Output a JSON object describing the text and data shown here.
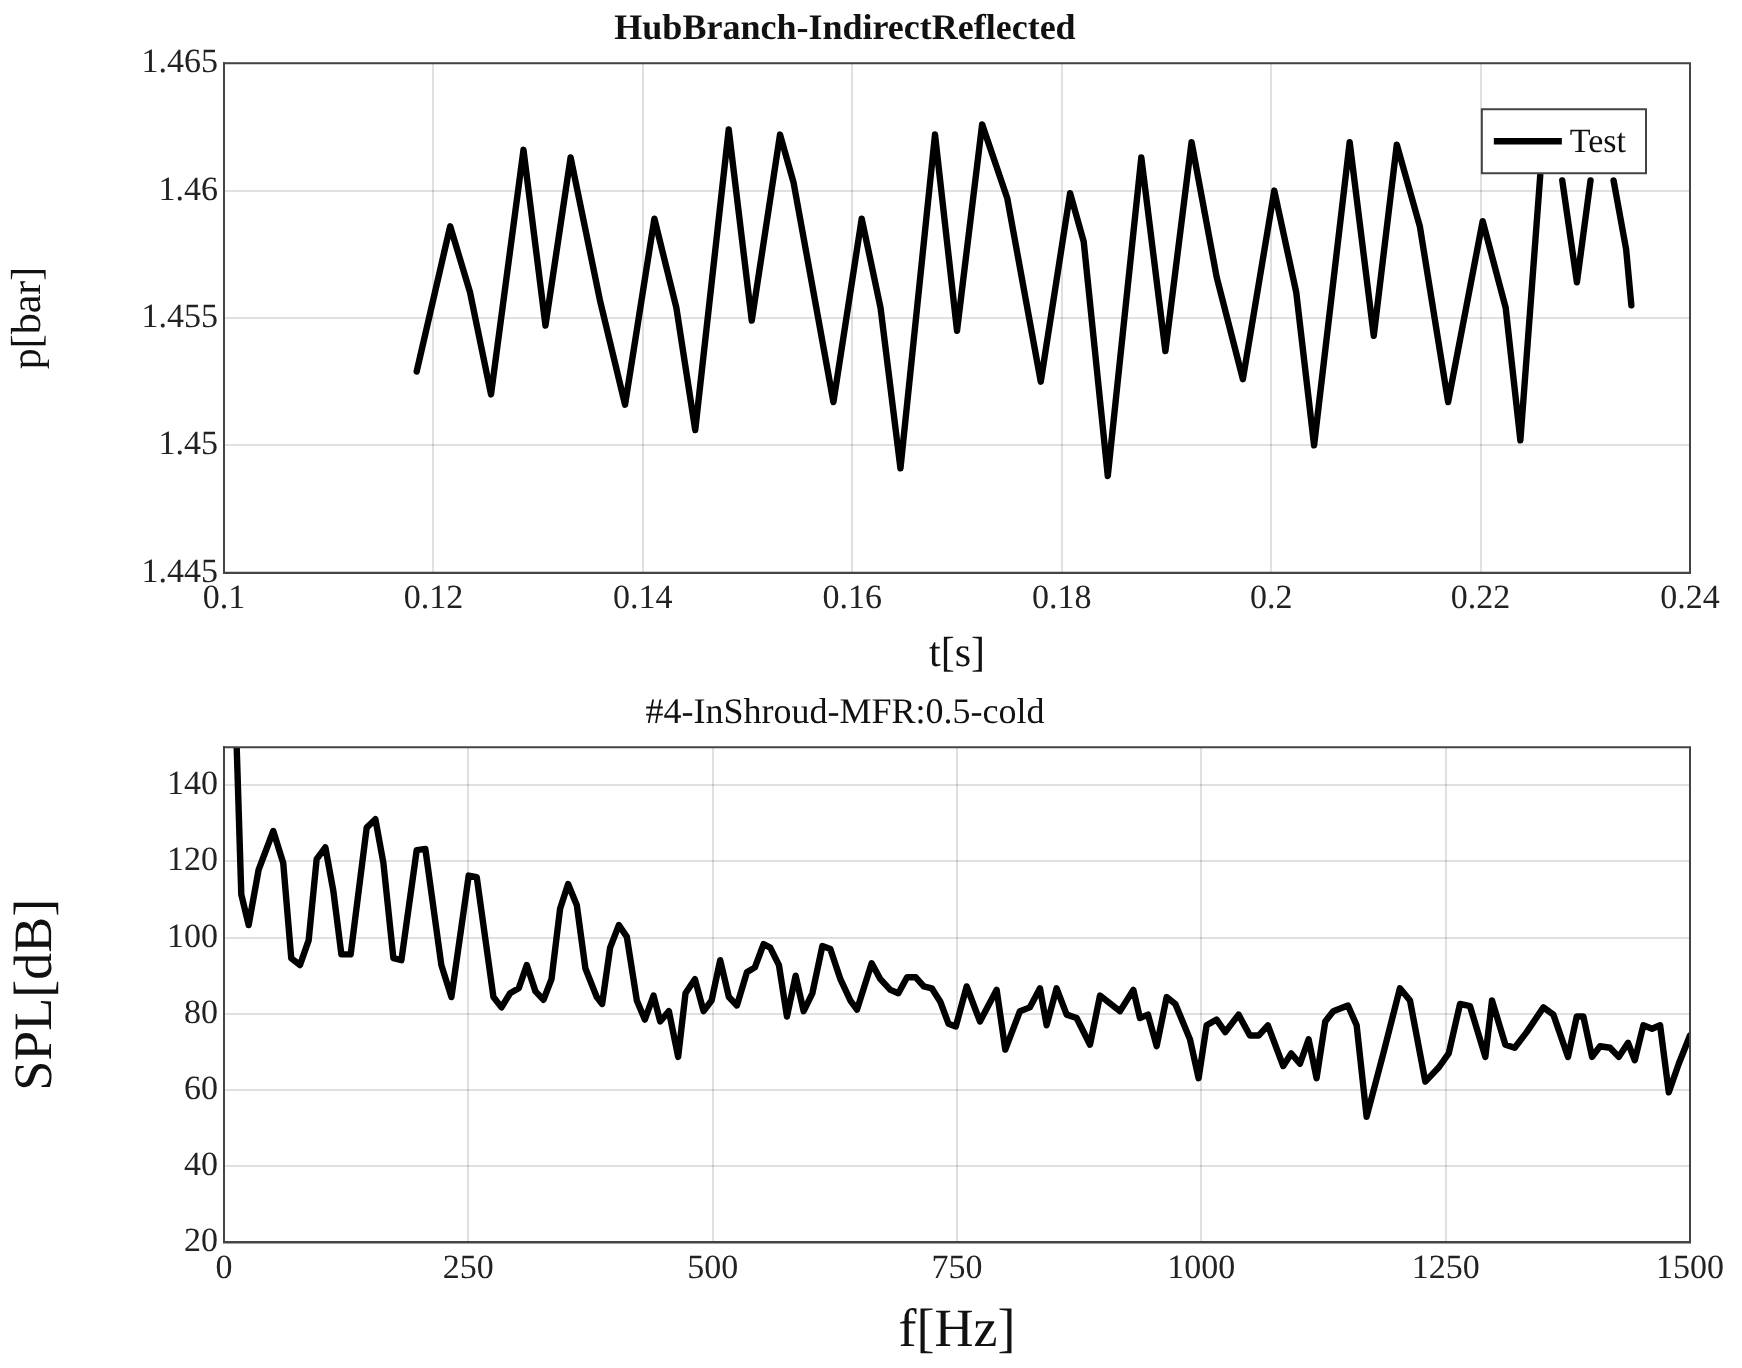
{
  "chart_data": [
    {
      "type": "line",
      "title": "HubBranch-IndirectReflected",
      "xlabel": "t[s]",
      "ylabel": "p[bar]",
      "xlim": [
        0.1,
        0.24
      ],
      "xticks": [
        0.1,
        0.12,
        0.14,
        0.16,
        0.18,
        0.2,
        0.22,
        0.24
      ],
      "ylim": [
        1.445,
        1.465
      ],
      "yticks": [
        1.445,
        1.45,
        1.455,
        1.46,
        1.465
      ],
      "grid": true,
      "legend": "top right",
      "marker": "none",
      "line_style": "solid",
      "x": [
        0.1184,
        0.1216,
        0.1235,
        0.1255,
        0.1286,
        0.1307,
        0.1331,
        0.1359,
        0.1383,
        0.1411,
        0.1432,
        0.145,
        0.1482,
        0.1504,
        0.1531,
        0.1544,
        0.1582,
        0.1609,
        0.1627,
        0.1646,
        0.1679,
        0.17,
        0.1724,
        0.1748,
        0.178,
        0.1808,
        0.1821,
        0.1844,
        0.1876,
        0.1899,
        0.1924,
        0.1948,
        0.1973,
        0.2003,
        0.2024,
        0.2041,
        0.2075,
        0.2098,
        0.212,
        0.2142,
        0.2169,
        0.2202,
        0.2224,
        0.2238,
        0.2257,
        0.2267,
        0.2278,
        0.2292,
        0.2305,
        0.2316,
        0.2327,
        0.2339,
        0.2344
      ],
      "series": [
        {
          "name": "Test",
          "color": "#000000",
          "values": [
            1.4529,
            1.4586,
            1.456,
            1.452,
            1.4616,
            1.4547,
            1.4613,
            1.4557,
            1.4516,
            1.4589,
            1.4554,
            1.4506,
            1.4624,
            1.4549,
            1.4622,
            1.4603,
            1.4517,
            1.4589,
            1.4554,
            1.4491,
            1.4622,
            1.4545,
            1.4626,
            1.4597,
            1.4525,
            1.4599,
            1.458,
            1.4488,
            1.4613,
            1.4537,
            1.4619,
            1.4566,
            1.4526,
            1.46,
            1.456,
            1.45,
            1.4619,
            1.4543,
            1.4618,
            1.4586,
            1.4517,
            1.4588,
            1.4554,
            1.4502,
            1.4606,
            null,
            1.4604,
            1.4564,
            1.4604,
            null,
            1.4604,
            1.4577,
            1.4555
          ]
        }
      ]
    },
    {
      "type": "line",
      "title": "#4-InShroud-MFR:0.5-cold",
      "xlabel": "f[Hz]",
      "ylabel": "SPL[dB]",
      "xlim": [
        0,
        1500
      ],
      "xticks": [
        0,
        250,
        500,
        750,
        1000,
        1250,
        1500
      ],
      "ylim": [
        20,
        150
      ],
      "yticks": [
        20,
        40,
        60,
        80,
        100,
        120,
        140
      ],
      "grid": true,
      "marker": "none",
      "line_style": "solid",
      "x": [
        13,
        17.7,
        25.2,
        35.4,
        50.4,
        60.6,
        68.8,
        77.7,
        86.6,
        94.8,
        103.7,
        111.9,
        120.1,
        129.6,
        146,
        154.9,
        163.1,
        173.3,
        181.5,
        197.2,
        206,
        222.4,
        232.7,
        250.4,
        258.6,
        275.7,
        283.9,
        292.7,
        301.6,
        309.8,
        318.7,
        326.9,
        335.1,
        343.9,
        352.1,
        361,
        369.8,
        381.4,
        386.9,
        395.1,
        404,
        412.2,
        422.4,
        430.6,
        439.5,
        446.3,
        455.2,
        464.7,
        472.2,
        481.8,
        490.7,
        498.9,
        507.7,
        516.6,
        524.8,
        535,
        543.2,
        552.1,
        558.9,
        567.8,
        576,
        584.9,
        593.1,
        602,
        612.2,
        620.4,
        630.7,
        640.9,
        647.7,
        662.7,
        671.6,
        681.8,
        690,
        698.9,
        707.8,
        716,
        724.2,
        733.1,
        741.3,
        748.8,
        759.9,
        773.5,
        790.6,
        799.4,
        814.4,
        824.6,
        834.9,
        841.7,
        851.9,
        862.2,
        872.4,
        886.1,
        896.3,
        916.8,
        930.4,
        937.2,
        945.4,
        954.3,
        964.5,
        973.4,
        988.4,
        997.2,
        1005.4,
        1015.6,
        1024.5,
        1038.1,
        1049.7,
        1058.6,
        1068.1,
        1083.8,
        1092,
        1100.9,
        1109.8,
        1117.9,
        1126.8,
        1135,
        1150,
        1158.9,
        1169.1,
        1186.2,
        1203.2,
        1213.5,
        1229.2,
        1242.8,
        1253.1,
        1264.7,
        1274.9,
        1290.6,
        1297.4,
        1311.1,
        1320.6,
        1332.9,
        1350,
        1360.2,
        1375.2,
        1384.1,
        1390.9,
        1399.8,
        1408,
        1418.2,
        1427.1,
        1436.6,
        1443.5,
        1452.3,
        1461.2,
        1469.4,
        1478.3,
        1488.5,
        1500
      ],
      "series": [
        {
          "color": "#000000",
          "values": [
            150,
            111.3,
            103.3,
            117.8,
            128,
            119.6,
            94.6,
            92.8,
            99.3,
            120.6,
            123.7,
            112.2,
            95.6,
            95.6,
            128.9,
            131.1,
            119.6,
            94.6,
            94.1,
            123,
            123.3,
            92.8,
            84.4,
            116.3,
            115.9,
            84.4,
            81.7,
            85.4,
            86.7,
            92.8,
            85.9,
            83.7,
            89.1,
            107.6,
            114.1,
            108.5,
            91.9,
            84.4,
            82.6,
            97.4,
            103.3,
            100.2,
            83.5,
            78.5,
            84.8,
            78,
            80.7,
            68.7,
            85.4,
            89.1,
            80.7,
            83.5,
            94.1,
            84.4,
            82.2,
            90.9,
            92.2,
            98.3,
            97.4,
            92.8,
            79.3,
            90,
            80.7,
            85.4,
            97.8,
            97,
            89.1,
            83.5,
            81.1,
            93.3,
            89.1,
            86.3,
            85.4,
            89.6,
            89.6,
            87.2,
            86.7,
            83.1,
            77.4,
            76.7,
            87.2,
            78,
            86.3,
            70.6,
            80.7,
            81.7,
            86.7,
            77,
            86.7,
            79.8,
            78.9,
            71.9,
            84.8,
            80.7,
            86.3,
            78.9,
            79.8,
            71.5,
            84.4,
            82.6,
            73.3,
            63.1,
            77,
            78.5,
            75.2,
            79.8,
            74.3,
            74.3,
            77,
            66.3,
            69.6,
            66.9,
            73.3,
            63.1,
            78,
            80.7,
            82.2,
            77,
            53,
            69.6,
            86.7,
            83.5,
            62.2,
            65.9,
            69.6,
            82.6,
            82,
            68.7,
            83.5,
            71.9,
            71.1,
            75.2,
            81.7,
            79.8,
            68.7,
            79.3,
            79.3,
            68.7,
            71.5,
            71.1,
            68.7,
            72.4,
            67.8,
            77,
            76.1,
            77,
            59.4,
            66.9,
            74.3
          ]
        }
      ]
    }
  ]
}
